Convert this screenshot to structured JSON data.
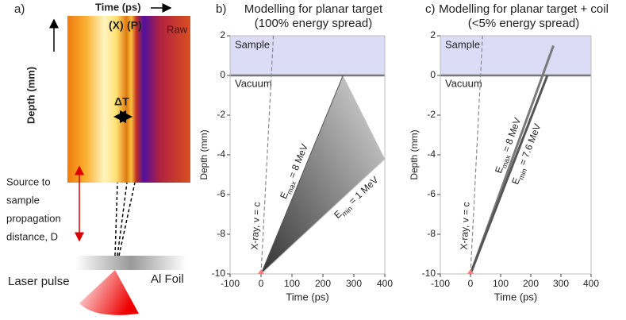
{
  "panel_a": {
    "label": "a)",
    "x_label": "Time (ps)",
    "y_label": "Depth (mm)",
    "markers": [
      "(X)",
      "(P)"
    ],
    "raw": "Raw",
    "delta": "ΔT",
    "source_text": [
      "Source to",
      "sample",
      "propagation",
      "distance, D"
    ],
    "foil": "Al Foil",
    "laser": "Laser pulse"
  },
  "chart_data": [
    {
      "type": "line",
      "label": "b)",
      "title": [
        "Modelling for planar target",
        "(100% energy spread)"
      ],
      "x_label": "Time (ps)",
      "y_label": "Depth (mm)",
      "xlim": [
        -100,
        400
      ],
      "ylim": [
        -10,
        2
      ],
      "xticks": [
        -100,
        0,
        100,
        200,
        300,
        400
      ],
      "yticks": [
        -10,
        -8,
        -6,
        -4,
        -2,
        0,
        2
      ],
      "sample_label": "Sample",
      "vacuum_label": "Vacuum",
      "sample_range": [
        0,
        2
      ],
      "sample_color": "#dcdcf7",
      "fill_between": true,
      "series": [
        {
          "label_parts": [
            "X-ray, v = c"
          ],
          "x": [
            0,
            40
          ],
          "values": [
            -10,
            2
          ],
          "color": "#8a8a8a",
          "dash": true
        },
        {
          "label_parts": [
            "E",
            "max",
            " = 8 MeV"
          ],
          "x": [
            0,
            265
          ],
          "values": [
            -10,
            0
          ],
          "color": "#555555"
        },
        {
          "label_parts": [
            "E",
            "min",
            " = 1 MeV"
          ],
          "x": [
            0,
            400
          ],
          "values": [
            -10,
            -4.2
          ],
          "color": "#bbbbbb"
        }
      ]
    },
    {
      "type": "line",
      "label": "c)",
      "title": [
        "Modelling for planar target + coil",
        "(<5% energy spread)"
      ],
      "x_label": "Time (ps)",
      "y_label": "Depth (mm)",
      "xlim": [
        -100,
        400
      ],
      "ylim": [
        -10,
        2
      ],
      "xticks": [
        -100,
        0,
        100,
        200,
        300,
        400
      ],
      "yticks": [
        -10,
        -8,
        -6,
        -4,
        -2,
        0,
        2
      ],
      "sample_label": "Sample",
      "vacuum_label": "Vacuum",
      "sample_range": [
        0,
        2
      ],
      "sample_color": "#dcdcf7",
      "fill_between": false,
      "series": [
        {
          "label_parts": [
            "X-ray, v = c"
          ],
          "x": [
            0,
            40
          ],
          "values": [
            -10,
            2
          ],
          "color": "#8a8a8a",
          "dash": true
        },
        {
          "label_parts": [
            "E",
            "max",
            " = 8 MeV"
          ],
          "x": [
            0,
            275
          ],
          "values": [
            -10,
            1.5
          ],
          "color": "#7a7a7a"
        },
        {
          "label_parts": [
            "E",
            "min",
            " = 7.6 MeV"
          ],
          "x": [
            0,
            255
          ],
          "values": [
            -10,
            0
          ],
          "color": "#555555"
        }
      ]
    }
  ]
}
